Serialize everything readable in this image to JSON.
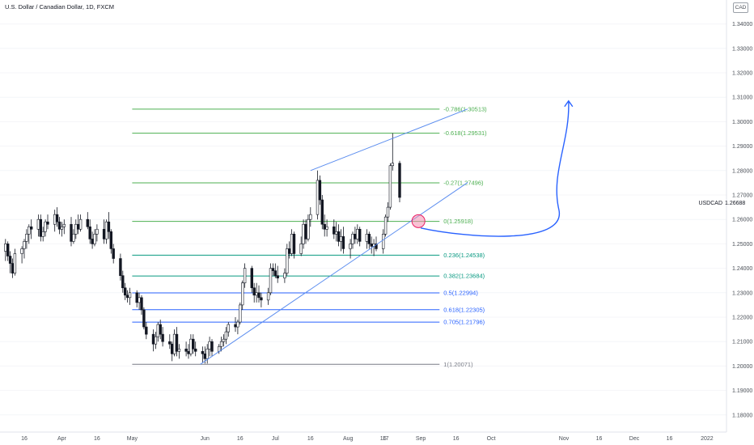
{
  "header": {
    "title": "U.S. Dollar / Canadian Dollar, 1D, FXCM",
    "currency_badge": "CAD"
  },
  "last_price": {
    "symbol": "USDCAD",
    "value": "1.26688",
    "price": 1.26688
  },
  "chart_data": {
    "type": "candlestick",
    "title": "U.S. Dollar / Canadian Dollar, 1D, FXCM",
    "symbol": "USDCAD",
    "ylim": [
      1.173,
      1.347
    ],
    "y_ticks": [
      "1.34000",
      "1.33000",
      "1.32000",
      "1.31000",
      "1.30000",
      "1.29000",
      "1.28000",
      "1.27000",
      "1.26000",
      "1.25000",
      "1.24000",
      "1.23000",
      "1.22000",
      "1.21000",
      "1.20000",
      "1.19000",
      "1.18000"
    ],
    "x_ticks": [
      "16",
      "Apr",
      "16",
      "May",
      "Jun",
      "16",
      "Jul",
      "16",
      "Aug",
      "16",
      "17",
      "Sep",
      "16",
      "Oct",
      "Nov",
      "16",
      "Dec",
      "16",
      "2022"
    ],
    "x_tick_dates": [
      "2021-03-16",
      "2021-04-01",
      "2021-04-16",
      "2021-05-01",
      "2021-06-01",
      "2021-06-16",
      "2021-07-01",
      "2021-07-16",
      "2021-08-01",
      "2021-08-16",
      "2021-08-17",
      "2021-09-01",
      "2021-09-16",
      "2021-10-01",
      "2021-11-01",
      "2021-11-16",
      "2021-12-01",
      "2021-12-16",
      "2022-01-01"
    ],
    "fib_levels": [
      {
        "label": "-0.786(1.30513)",
        "price": 1.30513,
        "color": "#4caf50"
      },
      {
        "label": "-0.618(1.29531)",
        "price": 1.29531,
        "color": "#4caf50"
      },
      {
        "label": "-0.27(1.27496)",
        "price": 1.27496,
        "color": "#4caf50"
      },
      {
        "label": "0(1.25918)",
        "price": 1.25918,
        "color": "#4caf50"
      },
      {
        "label": "0.236(1.24538)",
        "price": 1.24538,
        "color": "#089981"
      },
      {
        "label": "0.382(1.23684)",
        "price": 1.23684,
        "color": "#089981"
      },
      {
        "label": "0.5(1.22994)",
        "price": 1.22994,
        "color": "#2962ff"
      },
      {
        "label": "0.618(1.22305)",
        "price": 1.22305,
        "color": "#2962ff"
      },
      {
        "label": "0.705(1.21796)",
        "price": 1.21796,
        "color": "#2962ff"
      },
      {
        "label": "1(1.20071)",
        "price": 1.20071,
        "color": "#787b86"
      }
    ],
    "fib_range": {
      "start": "2021-05-01",
      "end": "2021-09-09"
    },
    "channel": {
      "lower": [
        {
          "date": "2021-05-30",
          "price": 1.2007
        },
        {
          "date": "2021-09-21",
          "price": 1.2751
        }
      ],
      "upper": [
        {
          "date": "2021-07-16",
          "price": 1.28
        },
        {
          "date": "2021-09-21",
          "price": 1.3052
        }
      ]
    },
    "marker": {
      "date": "2021-08-31",
      "price": 1.2593,
      "color": "#f48fb1"
    },
    "projection_arrow": {
      "path": [
        {
          "date": "2021-09-01",
          "price": 1.2565
        },
        {
          "date": "2021-10-30",
          "price": 1.2508
        },
        {
          "date": "2021-11-03",
          "price": 1.3085
        }
      ],
      "color": "#2962ff"
    },
    "candles": [
      {
        "d": "2021-02-25",
        "o": 1.2738,
        "h": 1.2752,
        "l": 1.2675,
        "c": 1.27
      },
      {
        "d": "2021-02-26",
        "o": 1.27,
        "h": 1.271,
        "l": 1.2625,
        "c": 1.265
      },
      {
        "d": "2021-03-01",
        "o": 1.265,
        "h": 1.27,
        "l": 1.26,
        "c": 1.268
      },
      {
        "d": "2021-03-02",
        "o": 1.268,
        "h": 1.269,
        "l": 1.258,
        "c": 1.26
      },
      {
        "d": "2021-03-03",
        "o": 1.26,
        "h": 1.264,
        "l": 1.256,
        "c": 1.262
      },
      {
        "d": "2021-03-04",
        "o": 1.262,
        "h": 1.266,
        "l": 1.252,
        "c": 1.255
      },
      {
        "d": "2021-03-05",
        "o": 1.255,
        "h": 1.256,
        "l": 1.245,
        "c": 1.247
      },
      {
        "d": "2021-03-08",
        "o": 1.247,
        "h": 1.252,
        "l": 1.243,
        "c": 1.25
      },
      {
        "d": "2021-03-09",
        "o": 1.25,
        "h": 1.251,
        "l": 1.243,
        "c": 1.245
      },
      {
        "d": "2021-03-10",
        "o": 1.245,
        "h": 1.247,
        "l": 1.238,
        "c": 1.242
      },
      {
        "d": "2021-03-11",
        "o": 1.242,
        "h": 1.244,
        "l": 1.236,
        "c": 1.238
      },
      {
        "d": "2021-03-12",
        "o": 1.238,
        "h": 1.248,
        "l": 1.237,
        "c": 1.246
      },
      {
        "d": "2021-03-15",
        "o": 1.246,
        "h": 1.249,
        "l": 1.242,
        "c": 1.248
      },
      {
        "d": "2021-03-16",
        "o": 1.248,
        "h": 1.252,
        "l": 1.244,
        "c": 1.251
      },
      {
        "d": "2021-03-17",
        "o": 1.251,
        "h": 1.256,
        "l": 1.248,
        "c": 1.254
      },
      {
        "d": "2021-03-18",
        "o": 1.254,
        "h": 1.258,
        "l": 1.25,
        "c": 1.257
      },
      {
        "d": "2021-03-19",
        "o": 1.257,
        "h": 1.26,
        "l": 1.252,
        "c": 1.256
      },
      {
        "d": "2021-03-22",
        "o": 1.256,
        "h": 1.262,
        "l": 1.253,
        "c": 1.26
      },
      {
        "d": "2021-03-23",
        "o": 1.26,
        "h": 1.262,
        "l": 1.251,
        "c": 1.253
      },
      {
        "d": "2021-03-24",
        "o": 1.253,
        "h": 1.257,
        "l": 1.251,
        "c": 1.255
      },
      {
        "d": "2021-03-25",
        "o": 1.255,
        "h": 1.26,
        "l": 1.253,
        "c": 1.259
      },
      {
        "d": "2021-03-26",
        "o": 1.259,
        "h": 1.262,
        "l": 1.256,
        "c": 1.258
      },
      {
        "d": "2021-03-29",
        "o": 1.258,
        "h": 1.264,
        "l": 1.255,
        "c": 1.262
      },
      {
        "d": "2021-03-30",
        "o": 1.262,
        "h": 1.265,
        "l": 1.257,
        "c": 1.259
      },
      {
        "d": "2021-03-31",
        "o": 1.259,
        "h": 1.261,
        "l": 1.254,
        "c": 1.256
      },
      {
        "d": "2021-04-01",
        "o": 1.256,
        "h": 1.259,
        "l": 1.253,
        "c": 1.257
      },
      {
        "d": "2021-04-02",
        "o": 1.257,
        "h": 1.26,
        "l": 1.254,
        "c": 1.258
      },
      {
        "d": "2021-04-05",
        "o": 1.258,
        "h": 1.261,
        "l": 1.249,
        "c": 1.251
      },
      {
        "d": "2021-04-06",
        "o": 1.251,
        "h": 1.256,
        "l": 1.25,
        "c": 1.254
      },
      {
        "d": "2021-04-07",
        "o": 1.254,
        "h": 1.26,
        "l": 1.252,
        "c": 1.258
      },
      {
        "d": "2021-04-08",
        "o": 1.258,
        "h": 1.262,
        "l": 1.254,
        "c": 1.256
      },
      {
        "d": "2021-04-09",
        "o": 1.256,
        "h": 1.262,
        "l": 1.255,
        "c": 1.26
      },
      {
        "d": "2021-04-12",
        "o": 1.26,
        "h": 1.263,
        "l": 1.256,
        "c": 1.257
      },
      {
        "d": "2021-04-13",
        "o": 1.257,
        "h": 1.26,
        "l": 1.25,
        "c": 1.252
      },
      {
        "d": "2021-04-14",
        "o": 1.252,
        "h": 1.255,
        "l": 1.248,
        "c": 1.25
      },
      {
        "d": "2021-04-15",
        "o": 1.25,
        "h": 1.256,
        "l": 1.249,
        "c": 1.254
      },
      {
        "d": "2021-04-16",
        "o": 1.254,
        "h": 1.258,
        "l": 1.251,
        "c": 1.256
      },
      {
        "d": "2021-04-19",
        "o": 1.256,
        "h": 1.26,
        "l": 1.25,
        "c": 1.252
      },
      {
        "d": "2021-04-20",
        "o": 1.252,
        "h": 1.26,
        "l": 1.25,
        "c": 1.259
      },
      {
        "d": "2021-04-21",
        "o": 1.259,
        "h": 1.263,
        "l": 1.252,
        "c": 1.255
      },
      {
        "d": "2021-04-22",
        "o": 1.255,
        "h": 1.256,
        "l": 1.246,
        "c": 1.248
      },
      {
        "d": "2021-04-23",
        "o": 1.248,
        "h": 1.25,
        "l": 1.242,
        "c": 1.244
      },
      {
        "d": "2021-04-26",
        "o": 1.244,
        "h": 1.246,
        "l": 1.235,
        "c": 1.237
      },
      {
        "d": "2021-04-27",
        "o": 1.237,
        "h": 1.239,
        "l": 1.23,
        "c": 1.232
      },
      {
        "d": "2021-04-28",
        "o": 1.232,
        "h": 1.234,
        "l": 1.227,
        "c": 1.229
      },
      {
        "d": "2021-04-29",
        "o": 1.229,
        "h": 1.231,
        "l": 1.226,
        "c": 1.228
      },
      {
        "d": "2021-04-30",
        "o": 1.228,
        "h": 1.232,
        "l": 1.225,
        "c": 1.23
      },
      {
        "d": "2021-05-03",
        "o": 1.23,
        "h": 1.231,
        "l": 1.224,
        "c": 1.226
      },
      {
        "d": "2021-05-04",
        "o": 1.226,
        "h": 1.23,
        "l": 1.223,
        "c": 1.228
      },
      {
        "d": "2021-05-05",
        "o": 1.228,
        "h": 1.229,
        "l": 1.221,
        "c": 1.223
      },
      {
        "d": "2021-05-06",
        "o": 1.223,
        "h": 1.224,
        "l": 1.215,
        "c": 1.216
      },
      {
        "d": "2021-05-07",
        "o": 1.216,
        "h": 1.218,
        "l": 1.211,
        "c": 1.213
      },
      {
        "d": "2021-05-10",
        "o": 1.213,
        "h": 1.215,
        "l": 1.206,
        "c": 1.209
      },
      {
        "d": "2021-05-11",
        "o": 1.209,
        "h": 1.214,
        "l": 1.207,
        "c": 1.212
      },
      {
        "d": "2021-05-12",
        "o": 1.212,
        "h": 1.218,
        "l": 1.21,
        "c": 1.217
      },
      {
        "d": "2021-05-13",
        "o": 1.217,
        "h": 1.219,
        "l": 1.211,
        "c": 1.213
      },
      {
        "d": "2021-05-14",
        "o": 1.213,
        "h": 1.216,
        "l": 1.208,
        "c": 1.21
      },
      {
        "d": "2021-05-17",
        "o": 1.21,
        "h": 1.213,
        "l": 1.207,
        "c": 1.209
      },
      {
        "d": "2021-05-18",
        "o": 1.209,
        "h": 1.21,
        "l": 1.202,
        "c": 1.205
      },
      {
        "d": "2021-05-19",
        "o": 1.205,
        "h": 1.215,
        "l": 1.204,
        "c": 1.213
      },
      {
        "d": "2021-05-20",
        "o": 1.213,
        "h": 1.216,
        "l": 1.204,
        "c": 1.206
      },
      {
        "d": "2021-05-21",
        "o": 1.206,
        "h": 1.209,
        "l": 1.203,
        "c": 1.207
      },
      {
        "d": "2021-05-24",
        "o": 1.207,
        "h": 1.21,
        "l": 1.204,
        "c": 1.206
      },
      {
        "d": "2021-05-25",
        "o": 1.206,
        "h": 1.209,
        "l": 1.203,
        "c": 1.205
      },
      {
        "d": "2021-05-26",
        "o": 1.205,
        "h": 1.213,
        "l": 1.204,
        "c": 1.211
      },
      {
        "d": "2021-05-27",
        "o": 1.211,
        "h": 1.213,
        "l": 1.205,
        "c": 1.207
      },
      {
        "d": "2021-05-28",
        "o": 1.207,
        "h": 1.21,
        "l": 1.204,
        "c": 1.206
      },
      {
        "d": "2021-05-31",
        "o": 1.206,
        "h": 1.208,
        "l": 1.2015,
        "c": 1.205
      },
      {
        "d": "2021-06-01",
        "o": 1.205,
        "h": 1.208,
        "l": 1.201,
        "c": 1.203
      },
      {
        "d": "2021-06-02",
        "o": 1.203,
        "h": 1.209,
        "l": 1.201,
        "c": 1.207
      },
      {
        "d": "2021-06-03",
        "o": 1.207,
        "h": 1.212,
        "l": 1.204,
        "c": 1.21
      },
      {
        "d": "2021-06-04",
        "o": 1.21,
        "h": 1.211,
        "l": 1.204,
        "c": 1.206
      },
      {
        "d": "2021-06-07",
        "o": 1.206,
        "h": 1.209,
        "l": 1.205,
        "c": 1.208
      },
      {
        "d": "2021-06-08",
        "o": 1.208,
        "h": 1.212,
        "l": 1.206,
        "c": 1.21
      },
      {
        "d": "2021-06-09",
        "o": 1.21,
        "h": 1.213,
        "l": 1.208,
        "c": 1.211
      },
      {
        "d": "2021-06-10",
        "o": 1.211,
        "h": 1.216,
        "l": 1.209,
        "c": 1.214
      },
      {
        "d": "2021-06-11",
        "o": 1.214,
        "h": 1.218,
        "l": 1.212,
        "c": 1.217
      },
      {
        "d": "2021-06-14",
        "o": 1.217,
        "h": 1.22,
        "l": 1.214,
        "c": 1.216
      },
      {
        "d": "2021-06-15",
        "o": 1.216,
        "h": 1.219,
        "l": 1.213,
        "c": 1.218
      },
      {
        "d": "2021-06-16",
        "o": 1.218,
        "h": 1.226,
        "l": 1.217,
        "c": 1.225
      },
      {
        "d": "2021-06-17",
        "o": 1.225,
        "h": 1.235,
        "l": 1.223,
        "c": 1.234
      },
      {
        "d": "2021-06-18",
        "o": 1.234,
        "h": 1.242,
        "l": 1.232,
        "c": 1.24
      },
      {
        "d": "2021-06-21",
        "o": 1.24,
        "h": 1.241,
        "l": 1.23,
        "c": 1.232
      },
      {
        "d": "2021-06-22",
        "o": 1.232,
        "h": 1.234,
        "l": 1.226,
        "c": 1.229
      },
      {
        "d": "2021-06-23",
        "o": 1.229,
        "h": 1.234,
        "l": 1.226,
        "c": 1.23
      },
      {
        "d": "2021-06-24",
        "o": 1.23,
        "h": 1.233,
        "l": 1.226,
        "c": 1.228
      },
      {
        "d": "2021-06-25",
        "o": 1.228,
        "h": 1.23,
        "l": 1.224,
        "c": 1.227
      },
      {
        "d": "2021-06-28",
        "o": 1.227,
        "h": 1.232,
        "l": 1.225,
        "c": 1.23
      },
      {
        "d": "2021-06-29",
        "o": 1.23,
        "h": 1.242,
        "l": 1.229,
        "c": 1.24
      },
      {
        "d": "2021-06-30",
        "o": 1.24,
        "h": 1.242,
        "l": 1.237,
        "c": 1.239
      },
      {
        "d": "2021-07-01",
        "o": 1.239,
        "h": 1.242,
        "l": 1.236,
        "c": 1.237
      },
      {
        "d": "2021-07-02",
        "o": 1.237,
        "h": 1.241,
        "l": 1.234,
        "c": 1.236
      },
      {
        "d": "2021-07-05",
        "o": 1.236,
        "h": 1.24,
        "l": 1.234,
        "c": 1.238
      },
      {
        "d": "2021-07-06",
        "o": 1.238,
        "h": 1.25,
        "l": 1.237,
        "c": 1.248
      },
      {
        "d": "2021-07-07",
        "o": 1.248,
        "h": 1.251,
        "l": 1.244,
        "c": 1.246
      },
      {
        "d": "2021-07-08",
        "o": 1.246,
        "h": 1.256,
        "l": 1.245,
        "c": 1.254
      },
      {
        "d": "2021-07-09",
        "o": 1.254,
        "h": 1.255,
        "l": 1.244,
        "c": 1.246
      },
      {
        "d": "2021-07-12",
        "o": 1.246,
        "h": 1.253,
        "l": 1.245,
        "c": 1.25
      },
      {
        "d": "2021-07-13",
        "o": 1.25,
        "h": 1.26,
        "l": 1.248,
        "c": 1.258
      },
      {
        "d": "2021-07-14",
        "o": 1.258,
        "h": 1.26,
        "l": 1.25,
        "c": 1.252
      },
      {
        "d": "2021-07-15",
        "o": 1.252,
        "h": 1.262,
        "l": 1.251,
        "c": 1.26
      },
      {
        "d": "2021-07-16",
        "o": 1.26,
        "h": 1.265,
        "l": 1.257,
        "c": 1.262
      },
      {
        "d": "2021-07-19",
        "o": 1.262,
        "h": 1.28,
        "l": 1.26,
        "c": 1.276
      },
      {
        "d": "2021-07-20",
        "o": 1.276,
        "h": 1.278,
        "l": 1.266,
        "c": 1.268
      },
      {
        "d": "2021-07-21",
        "o": 1.268,
        "h": 1.27,
        "l": 1.256,
        "c": 1.258
      },
      {
        "d": "2021-07-22",
        "o": 1.258,
        "h": 1.262,
        "l": 1.253,
        "c": 1.256
      },
      {
        "d": "2021-07-23",
        "o": 1.256,
        "h": 1.26,
        "l": 1.253,
        "c": 1.257
      },
      {
        "d": "2021-07-26",
        "o": 1.257,
        "h": 1.26,
        "l": 1.252,
        "c": 1.254
      },
      {
        "d": "2021-07-27",
        "o": 1.254,
        "h": 1.259,
        "l": 1.251,
        "c": 1.255
      },
      {
        "d": "2021-07-28",
        "o": 1.255,
        "h": 1.258,
        "l": 1.249,
        "c": 1.251
      },
      {
        "d": "2021-07-29",
        "o": 1.251,
        "h": 1.256,
        "l": 1.247,
        "c": 1.253
      },
      {
        "d": "2021-07-30",
        "o": 1.253,
        "h": 1.257,
        "l": 1.246,
        "c": 1.248
      },
      {
        "d": "2021-08-02",
        "o": 1.248,
        "h": 1.252,
        "l": 1.244,
        "c": 1.25
      },
      {
        "d": "2021-08-03",
        "o": 1.25,
        "h": 1.255,
        "l": 1.248,
        "c": 1.254
      },
      {
        "d": "2021-08-04",
        "o": 1.254,
        "h": 1.257,
        "l": 1.25,
        "c": 1.252
      },
      {
        "d": "2021-08-05",
        "o": 1.252,
        "h": 1.258,
        "l": 1.25,
        "c": 1.256
      },
      {
        "d": "2021-08-06",
        "o": 1.256,
        "h": 1.257,
        "l": 1.249,
        "c": 1.251
      },
      {
        "d": "2021-08-09",
        "o": 1.251,
        "h": 1.256,
        "l": 1.248,
        "c": 1.254
      },
      {
        "d": "2021-08-10",
        "o": 1.254,
        "h": 1.255,
        "l": 1.248,
        "c": 1.25
      },
      {
        "d": "2021-08-11",
        "o": 1.25,
        "h": 1.253,
        "l": 1.246,
        "c": 1.249
      },
      {
        "d": "2021-08-12",
        "o": 1.249,
        "h": 1.252,
        "l": 1.245,
        "c": 1.25
      },
      {
        "d": "2021-08-13",
        "o": 1.25,
        "h": 1.253,
        "l": 1.247,
        "c": 1.248
      },
      {
        "d": "2021-08-16",
        "o": 1.248,
        "h": 1.256,
        "l": 1.246,
        "c": 1.254
      },
      {
        "d": "2021-08-17",
        "o": 1.254,
        "h": 1.262,
        "l": 1.253,
        "c": 1.261
      },
      {
        "d": "2021-08-18",
        "o": 1.261,
        "h": 1.267,
        "l": 1.259,
        "c": 1.265
      },
      {
        "d": "2021-08-19",
        "o": 1.265,
        "h": 1.283,
        "l": 1.264,
        "c": 1.282
      },
      {
        "d": "2021-08-20",
        "o": 1.282,
        "h": 1.2953,
        "l": 1.28,
        "c": 1.283
      },
      {
        "d": "2021-08-23",
        "o": 1.283,
        "h": 1.284,
        "l": 1.267,
        "c": 1.269
      }
    ]
  }
}
